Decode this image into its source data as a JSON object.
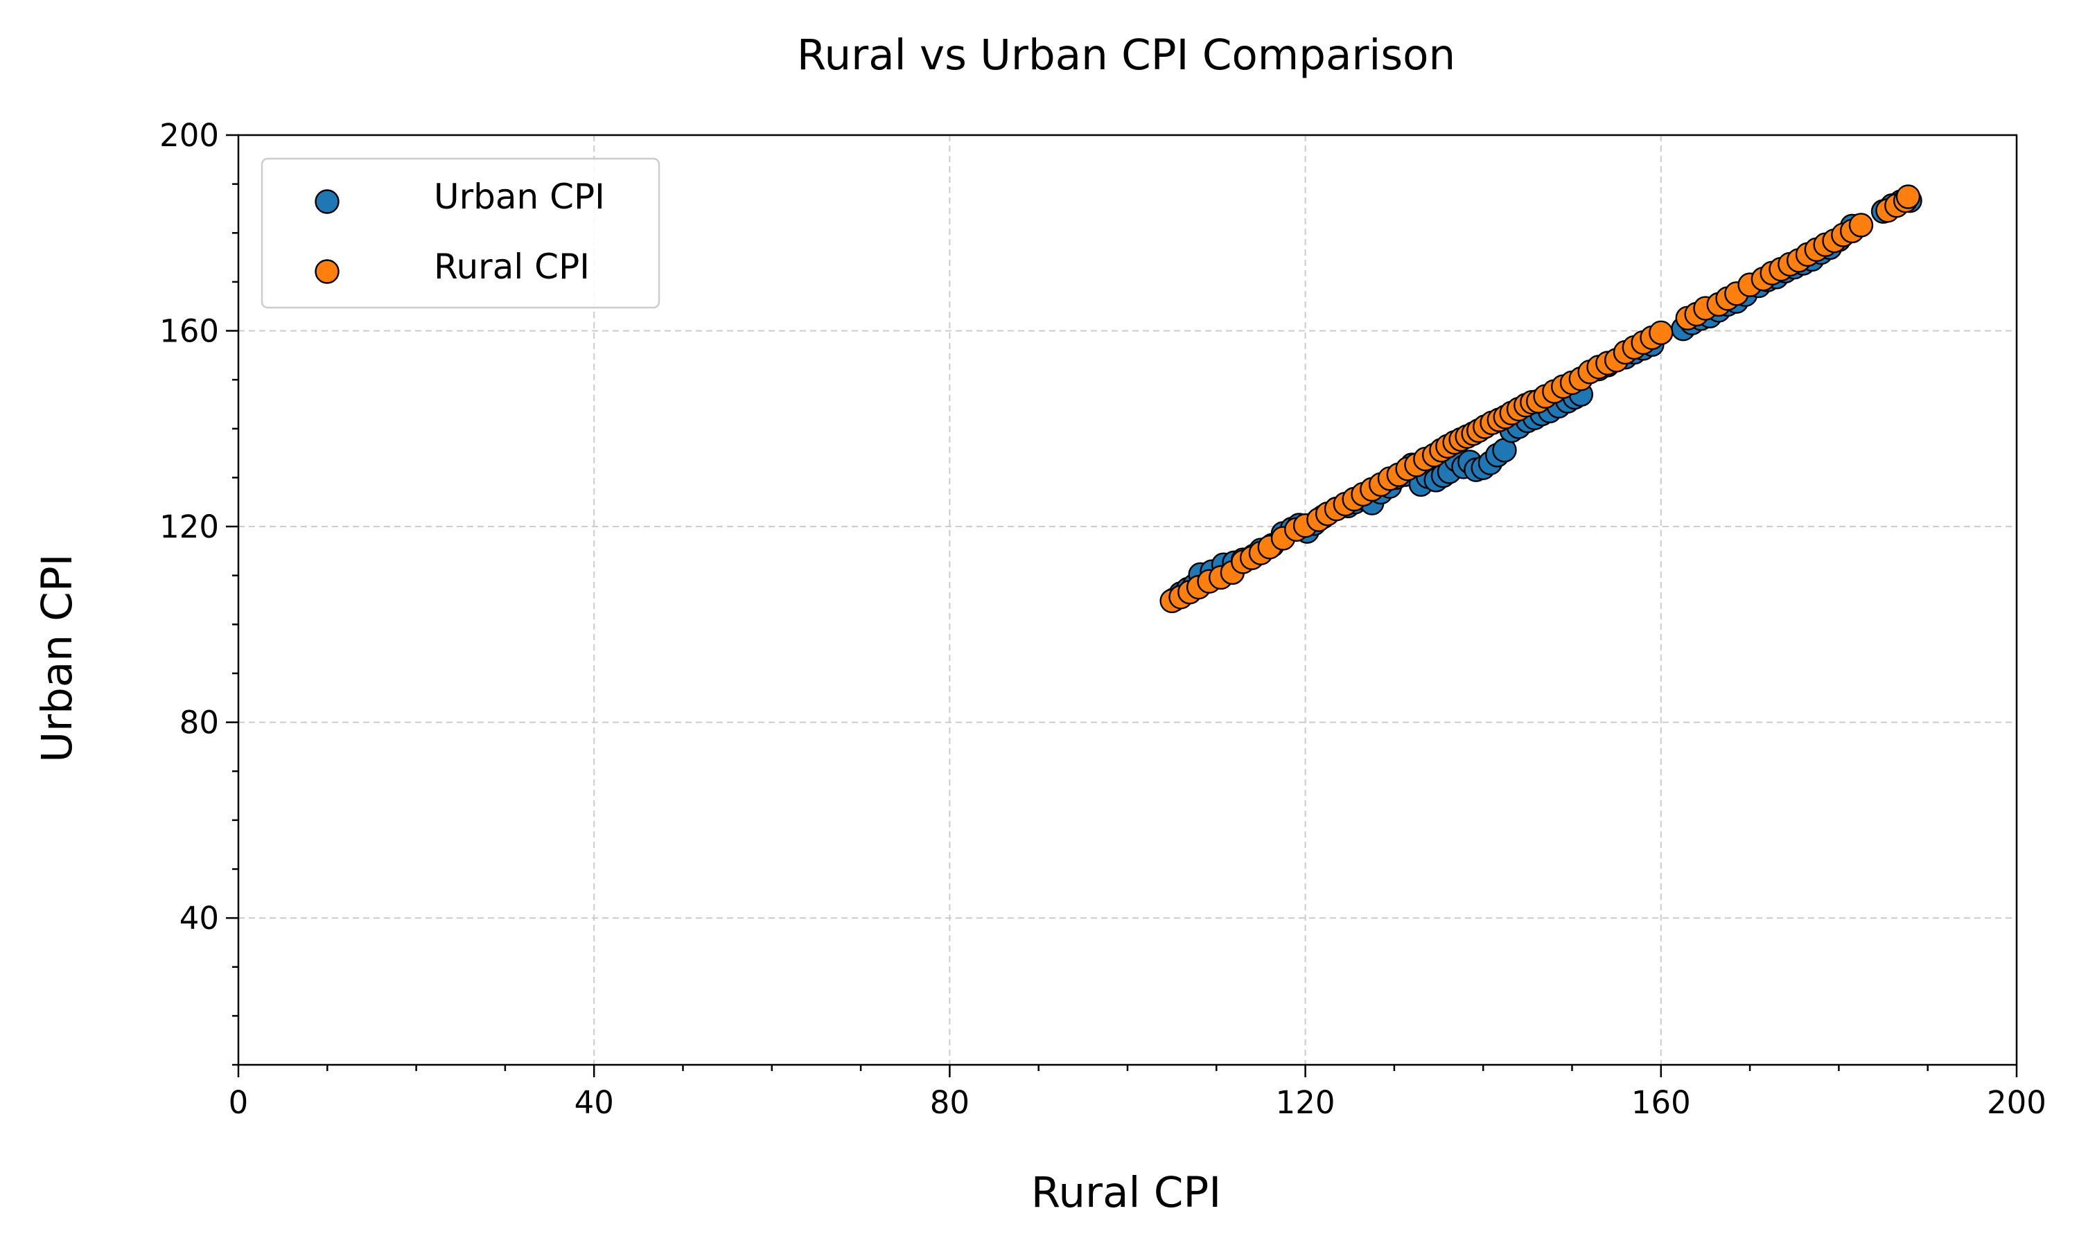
{
  "chart_data": {
    "type": "scatter",
    "title": "Rural vs Urban CPI Comparison",
    "xlabel": "Rural CPI",
    "ylabel": "Urban CPI",
    "xlim": [
      0,
      200
    ],
    "ylim": [
      10,
      200
    ],
    "xticks": [
      0,
      40,
      80,
      120,
      160,
      200
    ],
    "yticks": [
      40,
      80,
      120,
      160,
      200
    ],
    "grid": true,
    "legend": "upper-left",
    "series": [
      {
        "name": "Urban CPI",
        "color": "#1f77b4",
        "points": [
          [
            105.2,
            105.0
          ],
          [
            106.0,
            106.3
          ],
          [
            106.8,
            107.2
          ],
          [
            107.5,
            107.9
          ],
          [
            108.2,
            110.2
          ],
          [
            109.5,
            110.8
          ],
          [
            110.8,
            112.2
          ],
          [
            112.0,
            112.6
          ],
          [
            113.0,
            113.2
          ],
          [
            114.2,
            114.0
          ],
          [
            115.0,
            115.2
          ],
          [
            116.3,
            116.2
          ],
          [
            117.5,
            118.6
          ],
          [
            118.5,
            119.5
          ],
          [
            119.3,
            120.3
          ],
          [
            120.2,
            119.0
          ],
          [
            121.0,
            120.6
          ],
          [
            122.0,
            122.0
          ],
          [
            123.5,
            123.6
          ],
          [
            124.8,
            124.2
          ],
          [
            125.6,
            125.0
          ],
          [
            126.5,
            125.8
          ],
          [
            127.5,
            124.8
          ],
          [
            128.5,
            127.0
          ],
          [
            129.5,
            128.2
          ],
          [
            130.2,
            130.0
          ],
          [
            131.2,
            130.6
          ],
          [
            132.0,
            132.6
          ],
          [
            133.0,
            128.6
          ],
          [
            133.8,
            130.2
          ],
          [
            134.7,
            129.5
          ],
          [
            135.5,
            130.4
          ],
          [
            136.2,
            131.2
          ],
          [
            137.0,
            133.6
          ],
          [
            137.8,
            132.2
          ],
          [
            138.5,
            133.2
          ],
          [
            139.2,
            131.6
          ],
          [
            140.0,
            132.0
          ],
          [
            140.8,
            133.0
          ],
          [
            141.6,
            134.6
          ],
          [
            142.4,
            135.6
          ],
          [
            143.2,
            139.6
          ],
          [
            144.0,
            140.4
          ],
          [
            145.0,
            141.6
          ],
          [
            145.8,
            142.2
          ],
          [
            146.6,
            143.0
          ],
          [
            147.5,
            143.6
          ],
          [
            148.5,
            144.6
          ],
          [
            149.5,
            145.6
          ],
          [
            150.3,
            146.4
          ],
          [
            151.0,
            147.0
          ],
          [
            153.0,
            152.2
          ],
          [
            154.0,
            153.0
          ],
          [
            155.0,
            154.0
          ],
          [
            156.0,
            154.6
          ],
          [
            157.0,
            155.6
          ],
          [
            158.0,
            156.4
          ],
          [
            159.0,
            157.2
          ],
          [
            162.5,
            160.4
          ],
          [
            163.5,
            161.6
          ],
          [
            164.5,
            162.5
          ],
          [
            165.5,
            163.0
          ],
          [
            166.5,
            164.2
          ],
          [
            167.5,
            165.4
          ],
          [
            168.5,
            166.0
          ],
          [
            169.5,
            167.4
          ],
          [
            171.0,
            169.2
          ],
          [
            172.0,
            170.4
          ],
          [
            173.0,
            171.0
          ],
          [
            174.0,
            172.2
          ],
          [
            175.0,
            173.0
          ],
          [
            176.0,
            173.8
          ],
          [
            177.0,
            174.6
          ],
          [
            178.0,
            176.0
          ],
          [
            179.0,
            177.0
          ],
          [
            180.0,
            178.6
          ],
          [
            181.5,
            181.4
          ],
          [
            185.0,
            184.4
          ],
          [
            186.0,
            185.6
          ],
          [
            187.0,
            186.4
          ],
          [
            187.6,
            186.9
          ],
          [
            188.0,
            186.6
          ]
        ]
      },
      {
        "name": "Rural CPI",
        "color": "#ff7f0e",
        "points": [
          [
            105.0,
            104.8
          ],
          [
            106.0,
            105.6
          ],
          [
            107.0,
            106.6
          ],
          [
            108.0,
            107.6
          ],
          [
            109.2,
            108.8
          ],
          [
            110.5,
            109.6
          ],
          [
            111.8,
            110.6
          ],
          [
            113.0,
            112.8
          ],
          [
            114.0,
            113.6
          ],
          [
            115.0,
            114.6
          ],
          [
            116.0,
            115.8
          ],
          [
            117.5,
            117.6
          ],
          [
            119.0,
            119.4
          ],
          [
            120.0,
            120.2
          ],
          [
            121.5,
            121.4
          ],
          [
            122.5,
            122.6
          ],
          [
            123.5,
            123.6
          ],
          [
            124.5,
            124.6
          ],
          [
            125.5,
            125.6
          ],
          [
            126.5,
            126.6
          ],
          [
            127.5,
            127.6
          ],
          [
            128.5,
            128.6
          ],
          [
            129.5,
            129.8
          ],
          [
            130.5,
            130.6
          ],
          [
            131.5,
            131.8
          ],
          [
            132.5,
            132.6
          ],
          [
            133.5,
            133.8
          ],
          [
            134.5,
            134.6
          ],
          [
            135.3,
            135.6
          ],
          [
            136.0,
            136.4
          ],
          [
            136.8,
            137.2
          ],
          [
            137.5,
            137.8
          ],
          [
            138.2,
            138.4
          ],
          [
            138.9,
            139.0
          ],
          [
            139.5,
            139.6
          ],
          [
            140.2,
            140.4
          ],
          [
            141.0,
            141.2
          ],
          [
            141.8,
            141.8
          ],
          [
            142.5,
            142.4
          ],
          [
            143.2,
            143.2
          ],
          [
            144.0,
            144.0
          ],
          [
            144.8,
            144.8
          ],
          [
            145.5,
            145.4
          ],
          [
            146.2,
            145.6
          ],
          [
            147.0,
            146.6
          ],
          [
            148.0,
            147.6
          ],
          [
            149.0,
            148.6
          ],
          [
            150.0,
            149.4
          ],
          [
            151.0,
            150.2
          ],
          [
            152.0,
            151.6
          ],
          [
            153.0,
            152.6
          ],
          [
            154.0,
            153.4
          ],
          [
            155.0,
            154.0
          ],
          [
            156.0,
            155.6
          ],
          [
            157.0,
            156.6
          ],
          [
            158.0,
            157.6
          ],
          [
            159.0,
            158.6
          ],
          [
            160.0,
            159.6
          ],
          [
            163.0,
            162.6
          ],
          [
            164.0,
            163.4
          ],
          [
            165.0,
            164.6
          ],
          [
            166.5,
            165.4
          ],
          [
            167.5,
            166.6
          ],
          [
            168.5,
            167.6
          ],
          [
            170.0,
            169.4
          ],
          [
            171.5,
            170.6
          ],
          [
            172.5,
            171.8
          ],
          [
            173.5,
            172.6
          ],
          [
            174.5,
            173.6
          ],
          [
            175.5,
            174.4
          ],
          [
            176.5,
            175.6
          ],
          [
            177.5,
            176.6
          ],
          [
            178.5,
            177.6
          ],
          [
            179.5,
            178.4
          ],
          [
            180.5,
            179.6
          ],
          [
            181.5,
            180.4
          ],
          [
            182.5,
            181.6
          ],
          [
            185.5,
            184.6
          ],
          [
            186.5,
            185.6
          ],
          [
            187.5,
            186.6
          ],
          [
            187.8,
            187.4
          ]
        ]
      }
    ]
  }
}
